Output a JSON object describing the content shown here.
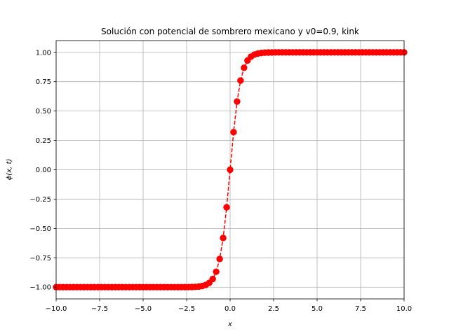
{
  "chart_data": {
    "type": "line",
    "title": "Solución con potencial de sombrero mexicano y v0=0.9, kink",
    "xlabel": "x",
    "ylabel": "ϕ(x, t)",
    "xlim": [
      -10,
      10
    ],
    "ylim": [
      -1.1,
      1.1
    ],
    "x_ticks": [
      -10,
      -7.5,
      -5,
      -2.5,
      0,
      2.5,
      5,
      7.5,
      10
    ],
    "x_tick_labels": [
      "−10.0",
      "−7.5",
      "−5.0",
      "−2.5",
      "0.0",
      "2.5",
      "5.0",
      "7.5",
      "10.0"
    ],
    "y_ticks": [
      -1,
      -0.75,
      -0.5,
      -0.25,
      0,
      0.25,
      0.5,
      0.75,
      1
    ],
    "y_tick_labels": [
      "−1.00",
      "−0.75",
      "−0.50",
      "−0.25",
      "0.00",
      "0.25",
      "0.50",
      "0.75",
      "1.00"
    ],
    "grid": true,
    "series": [
      {
        "color": "#ff0000",
        "linestyle": "dashed",
        "marker": "circle",
        "points": {
          "x_start": -10,
          "x_end": 10,
          "count": 101,
          "function": "tanh",
          "scale": 1.66
        }
      }
    ]
  }
}
